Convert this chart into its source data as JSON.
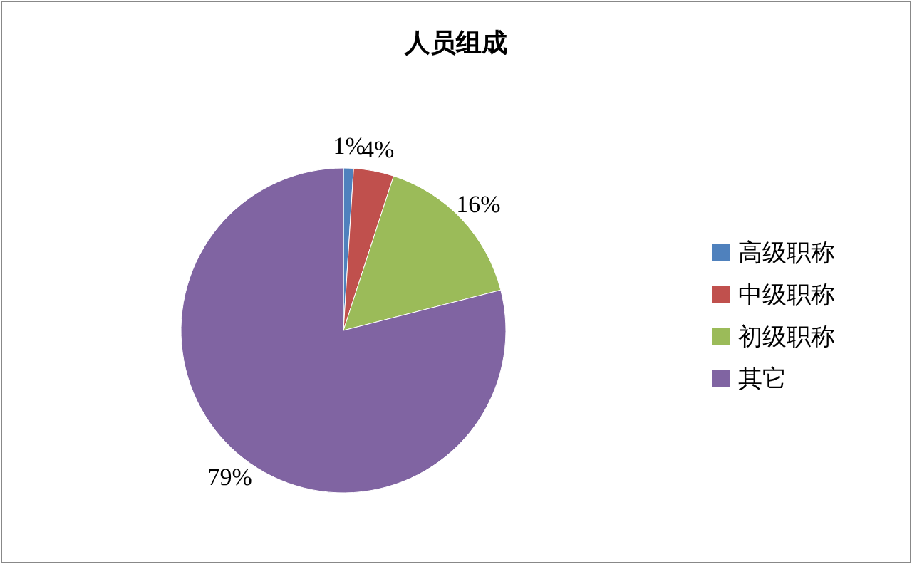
{
  "chart_data": {
    "type": "pie",
    "title": "人员组成",
    "categories": [
      "高级职称",
      "中级职称",
      "初级职称",
      "其它"
    ],
    "values": [
      1,
      4,
      16,
      79
    ],
    "colors": [
      "#4f81bd",
      "#c0504d",
      "#9bbb59",
      "#8064a2"
    ],
    "value_labels": [
      "1%",
      "4%",
      "16%",
      "79%"
    ],
    "legend": "right"
  }
}
